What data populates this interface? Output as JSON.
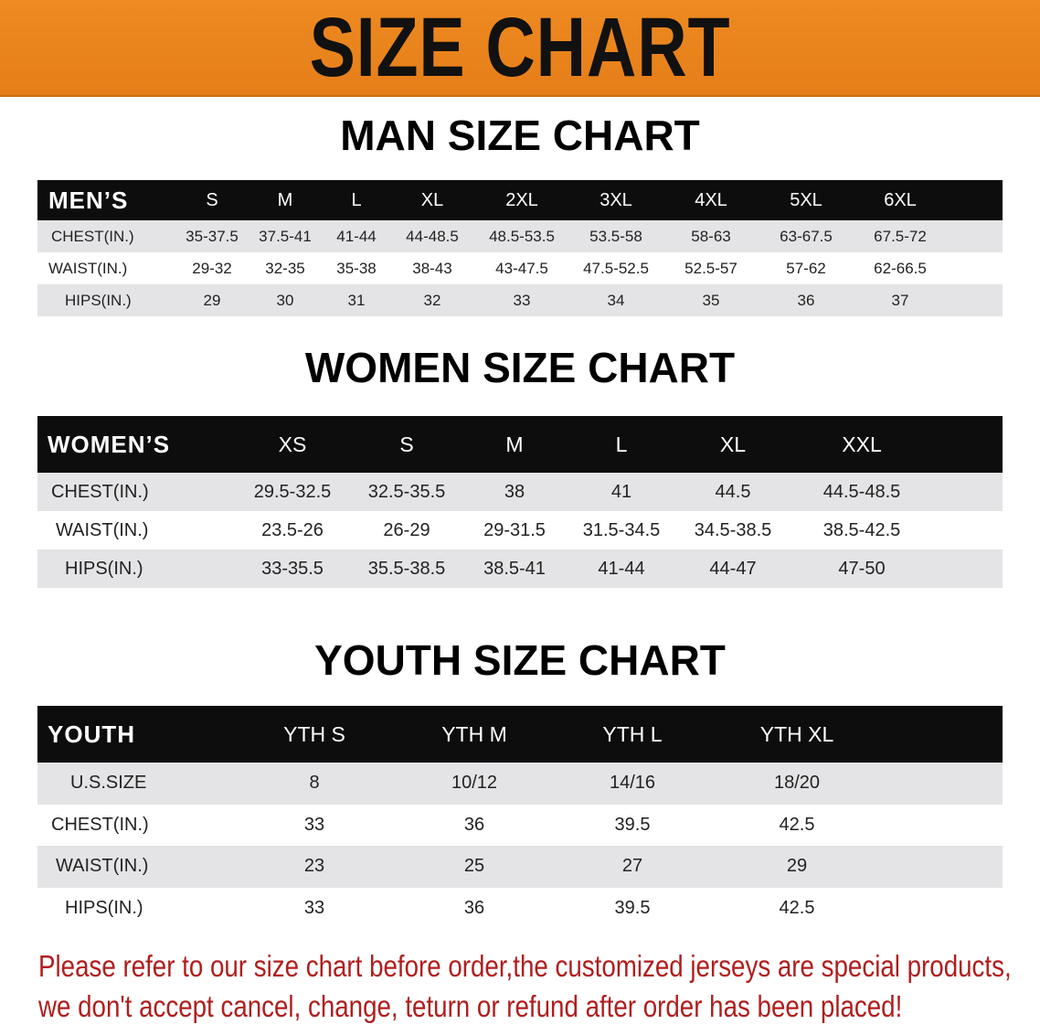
{
  "banner": {
    "title": "SIZE CHART",
    "color": "#e8841c"
  },
  "men": {
    "title": "MAN SIZE CHART",
    "header": {
      "label": "MEN’S",
      "sizes": [
        "S",
        "M",
        "L",
        "XL",
        "2XL",
        "3XL",
        "4XL",
        "5XL",
        "6XL"
      ]
    },
    "rows": [
      {
        "label": "CHEST(IN.)",
        "values": [
          "35-37.5",
          "37.5-41",
          "41-44",
          "44-48.5",
          "48.5-53.5",
          "53.5-58",
          "58-63",
          "63-67.5",
          "67.5-72"
        ]
      },
      {
        "label": "WAIST(IN.)",
        "values": [
          "29-32",
          "32-35",
          "35-38",
          "38-43",
          "43-47.5",
          "47.5-52.5",
          "52.5-57",
          "57-62",
          "62-66.5"
        ]
      },
      {
        "label": "HIPS(IN.)",
        "values": [
          "29",
          "30",
          "31",
          "32",
          "33",
          "34",
          "35",
          "36",
          "37"
        ]
      }
    ]
  },
  "women": {
    "title": "WOMEN SIZE CHART",
    "header": {
      "label": "WOMEN’S",
      "sizes": [
        "XS",
        "S",
        "M",
        "L",
        "XL",
        "XXL"
      ]
    },
    "rows": [
      {
        "label": "CHEST(IN.)",
        "values": [
          "29.5-32.5",
          "32.5-35.5",
          "38",
          "41",
          "44.5",
          "44.5-48.5"
        ]
      },
      {
        "label": "WAIST(IN.)",
        "values": [
          "23.5-26",
          "26-29",
          "29-31.5",
          "31.5-34.5",
          "34.5-38.5",
          "38.5-42.5"
        ]
      },
      {
        "label": "HIPS(IN.)",
        "values": [
          "33-35.5",
          "35.5-38.5",
          "38.5-41",
          "41-44",
          "44-47",
          "47-50"
        ]
      }
    ]
  },
  "youth": {
    "title": "YOUTH SIZE CHART",
    "header": {
      "label": "YOUTH",
      "sizes": [
        "YTH S",
        "YTH M",
        "YTH L",
        "YTH XL"
      ]
    },
    "rows": [
      {
        "label": "U.S.SIZE",
        "values": [
          "8",
          "10/12",
          "14/16",
          "18/20"
        ]
      },
      {
        "label": "CHEST(IN.)",
        "values": [
          "33",
          "36",
          "39.5",
          "42.5"
        ]
      },
      {
        "label": "WAIST(IN.)",
        "values": [
          "23",
          "25",
          "27",
          "29"
        ]
      },
      {
        "label": "HIPS(IN.)",
        "values": [
          "33",
          "36",
          "39.5",
          "42.5"
        ]
      }
    ]
  },
  "notice": {
    "line1": "Please refer to our size chart before order,the customized jerseys are special products,",
    "line2": "we don't accept cancel, change, teturn or refund after order has been placed!",
    "color": "#b01e1e"
  }
}
